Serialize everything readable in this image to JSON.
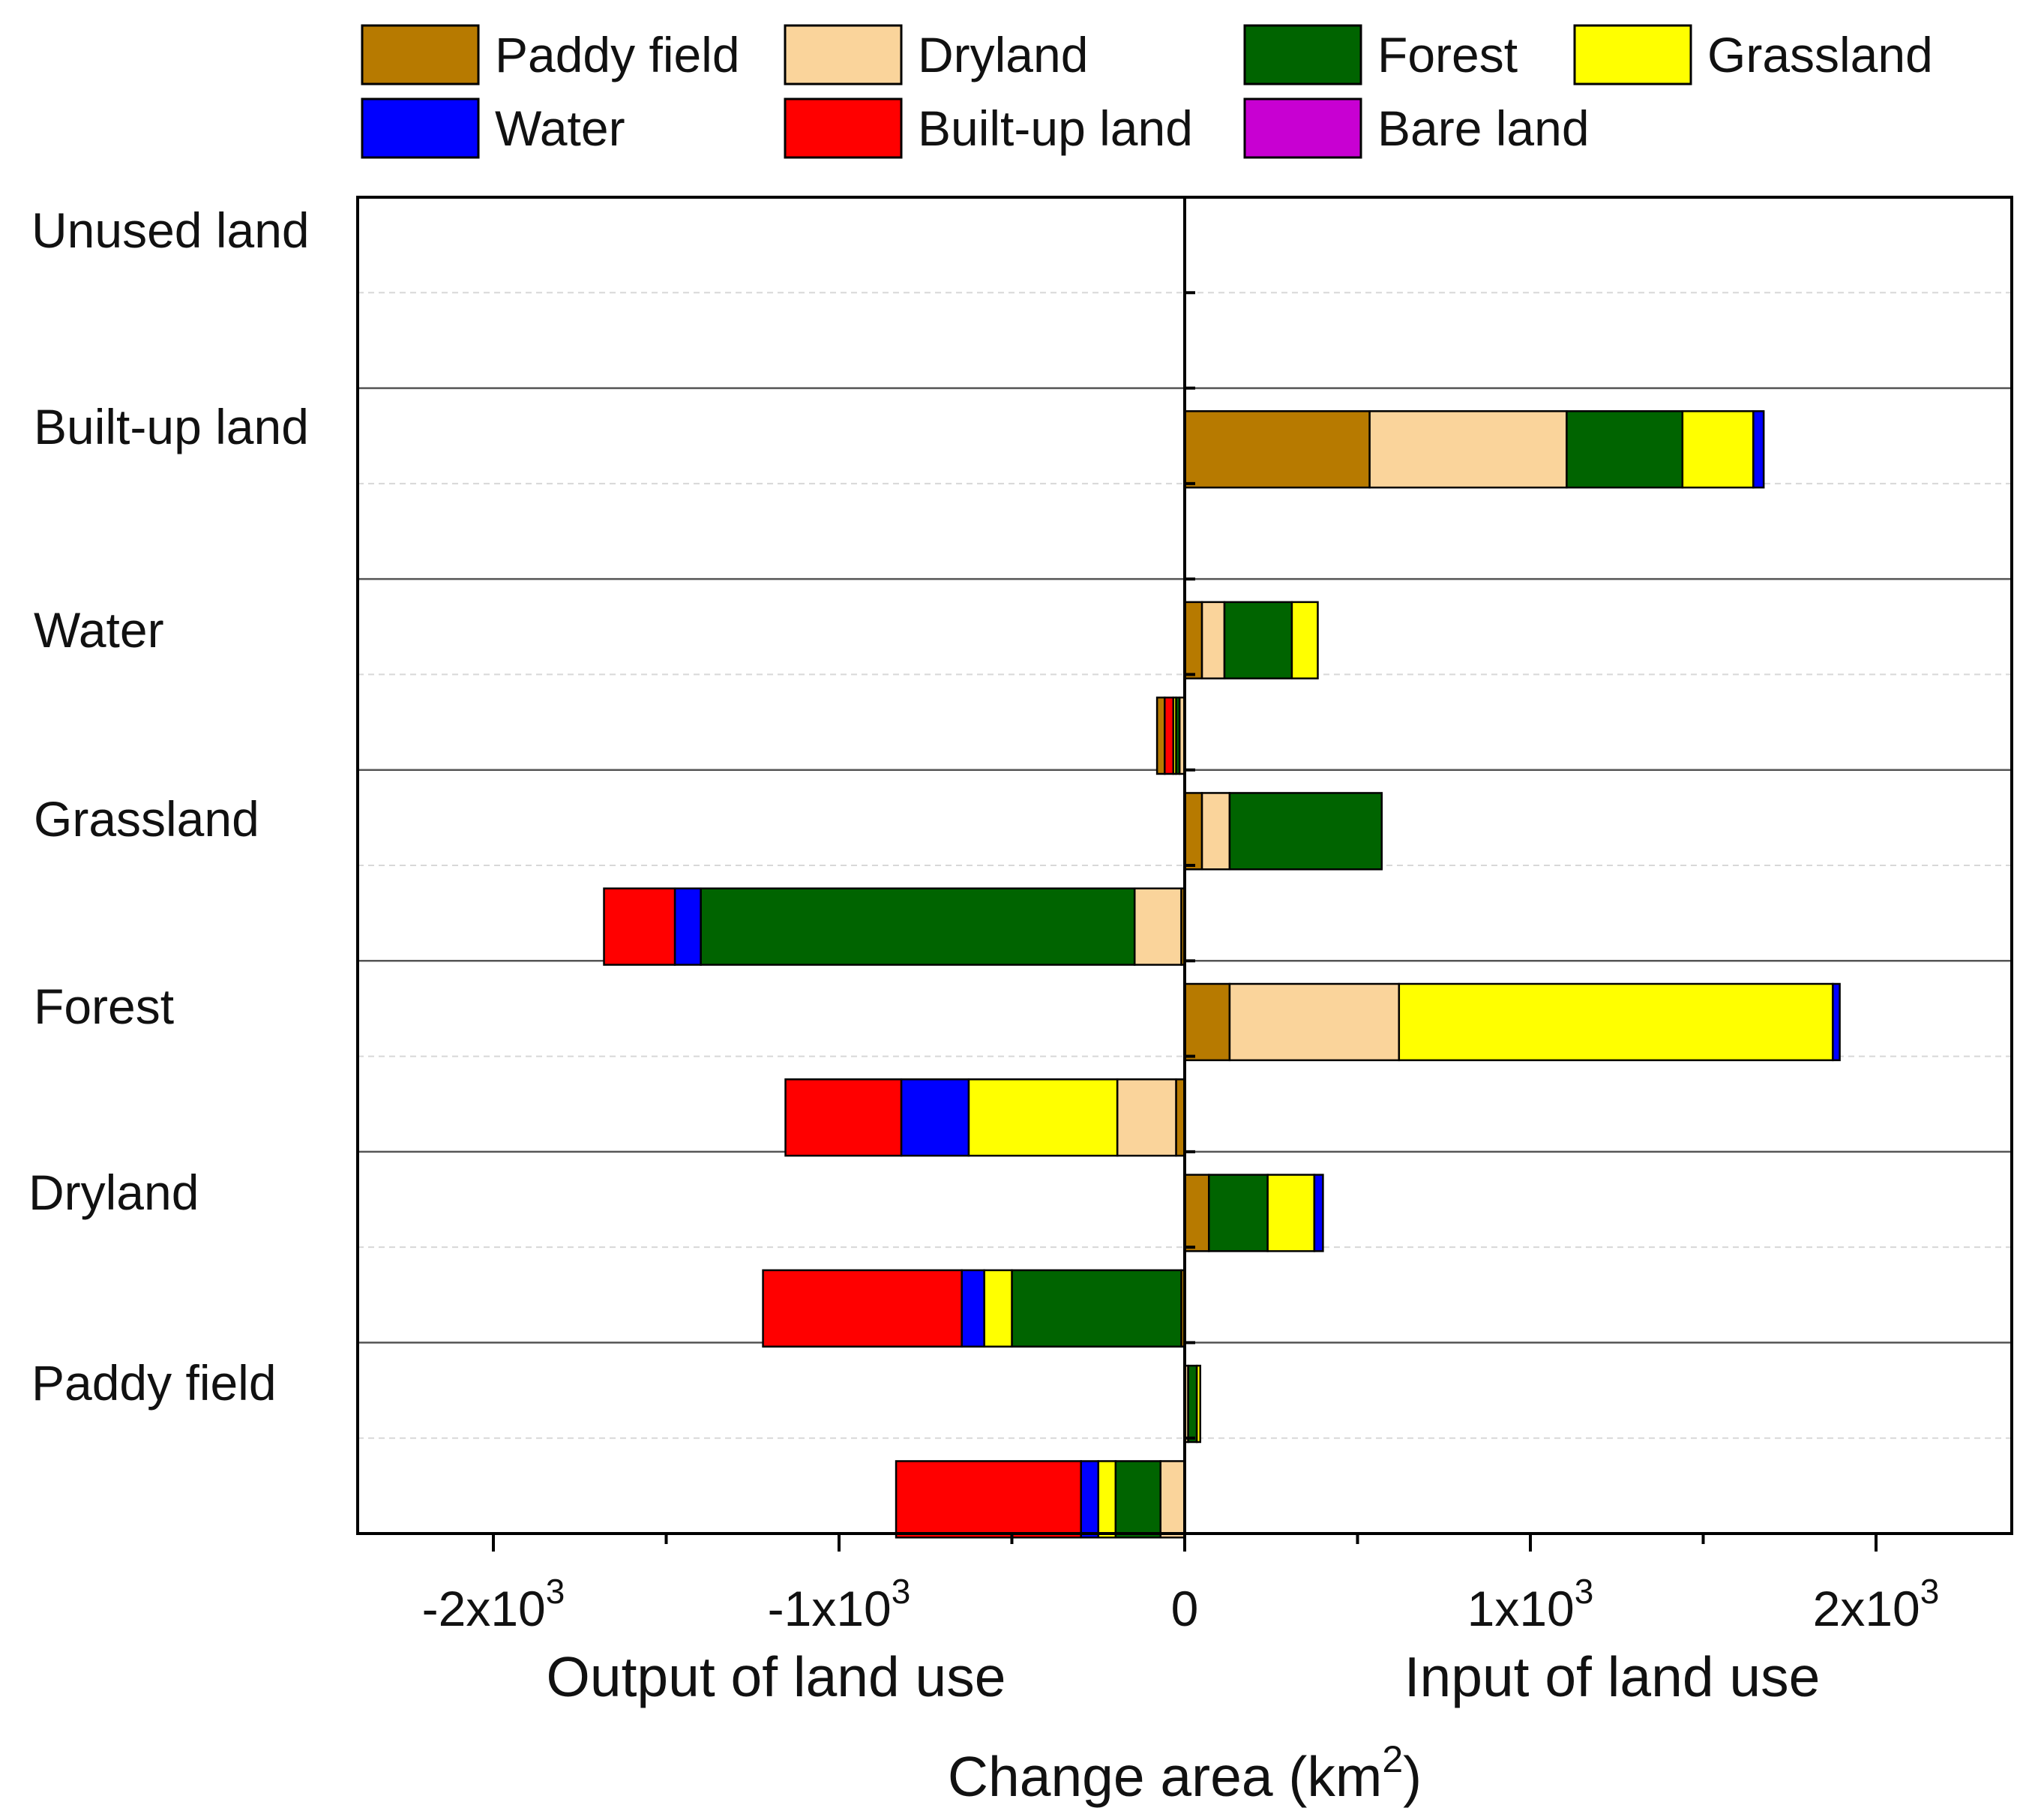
{
  "chart_data": {
    "type": "bar",
    "orientation": "horizontal",
    "stacked": true,
    "diverging": true,
    "xlabel": "Change area (km²)",
    "xlabel_text": "Change area (km",
    "xlabel_sup": "2",
    "xlabel_close": ")",
    "left_caption": "Output of land use",
    "right_caption": "Input of land use",
    "xlim": [
      -2400,
      2400
    ],
    "xticks": [
      {
        "value": -2000,
        "base": "-2x10",
        "exp": "3"
      },
      {
        "value": -1000,
        "base": "-1x10",
        "exp": "3"
      },
      {
        "value": 0,
        "base": "0",
        "exp": ""
      },
      {
        "value": 1000,
        "base": "1x10",
        "exp": "3"
      },
      {
        "value": 2000,
        "base": "2x10",
        "exp": "3"
      }
    ],
    "categories": [
      "Unused land",
      "Built-up land",
      "Water",
      "Grassland",
      "Forest",
      "Dryland",
      "Paddy field"
    ],
    "legend_position": "top",
    "series": [
      {
        "name": "Paddy field",
        "color": "#B77A00"
      },
      {
        "name": "Dryland",
        "color": "#FAD49B"
      },
      {
        "name": "Forest",
        "color": "#006400"
      },
      {
        "name": "Grassland",
        "color": "#FFFF00"
      },
      {
        "name": "Water",
        "color": "#0000FF"
      },
      {
        "name": "Built-up land",
        "color": "#FF0000"
      },
      {
        "name": "Bare land",
        "color": "#C800D2"
      }
    ],
    "legend_order": [
      "Paddy field",
      "Dryland",
      "Forest",
      "Grassland",
      "Water",
      "Built-up land",
      "Bare land"
    ],
    "bars": [
      {
        "category": "Unused land",
        "side": "input",
        "segments": []
      },
      {
        "category": "Unused land",
        "side": "output",
        "segments": []
      },
      {
        "category": "Built-up land",
        "side": "input",
        "segments": [
          {
            "series": "Paddy field",
            "value": 535
          },
          {
            "series": "Dryland",
            "value": 570
          },
          {
            "series": "Forest",
            "value": 335
          },
          {
            "series": "Grassland",
            "value": 205
          },
          {
            "series": "Water",
            "value": 30
          }
        ]
      },
      {
        "category": "Built-up land",
        "side": "output",
        "segments": []
      },
      {
        "category": "Water",
        "side": "input",
        "segments": [
          {
            "series": "Paddy field",
            "value": 50
          },
          {
            "series": "Dryland",
            "value": 65
          },
          {
            "series": "Forest",
            "value": 195
          },
          {
            "series": "Grassland",
            "value": 75
          }
        ]
      },
      {
        "category": "Water",
        "side": "output",
        "segments": [
          {
            "series": "Dryland",
            "value": -15
          },
          {
            "series": "Forest",
            "value": -10
          },
          {
            "series": "Grassland",
            "value": -8
          },
          {
            "series": "Built-up land",
            "value": -25
          },
          {
            "series": "Paddy field",
            "value": -22
          }
        ]
      },
      {
        "category": "Grassland",
        "side": "input",
        "segments": [
          {
            "series": "Paddy field",
            "value": 50
          },
          {
            "series": "Dryland",
            "value": 80
          },
          {
            "series": "Forest",
            "value": 440
          }
        ]
      },
      {
        "category": "Grassland",
        "side": "output",
        "segments": [
          {
            "series": "Paddy field",
            "value": -10
          },
          {
            "series": "Dryland",
            "value": -135
          },
          {
            "series": "Forest",
            "value": -1255
          },
          {
            "series": "Water",
            "value": -75
          },
          {
            "series": "Built-up land",
            "value": -205
          }
        ]
      },
      {
        "category": "Forest",
        "side": "input",
        "segments": [
          {
            "series": "Paddy field",
            "value": 130
          },
          {
            "series": "Dryland",
            "value": 490
          },
          {
            "series": "Grassland",
            "value": 1255
          },
          {
            "series": "Water",
            "value": 20
          }
        ]
      },
      {
        "category": "Forest",
        "side": "output",
        "segments": [
          {
            "series": "Paddy field",
            "value": -25
          },
          {
            "series": "Dryland",
            "value": -170
          },
          {
            "series": "Grassland",
            "value": -430
          },
          {
            "series": "Water",
            "value": -195
          },
          {
            "series": "Built-up land",
            "value": -335
          }
        ]
      },
      {
        "category": "Dryland",
        "side": "input",
        "segments": [
          {
            "series": "Paddy field",
            "value": 70
          },
          {
            "series": "Forest",
            "value": 170
          },
          {
            "series": "Grassland",
            "value": 135
          },
          {
            "series": "Water",
            "value": 25
          }
        ]
      },
      {
        "category": "Dryland",
        "side": "output",
        "segments": [
          {
            "series": "Paddy field",
            "value": -10
          },
          {
            "series": "Forest",
            "value": -490
          },
          {
            "series": "Grassland",
            "value": -80
          },
          {
            "series": "Water",
            "value": -65
          },
          {
            "series": "Built-up land",
            "value": -575
          }
        ]
      },
      {
        "category": "Paddy field",
        "side": "input",
        "segments": [
          {
            "series": "Dryland",
            "value": 10
          },
          {
            "series": "Forest",
            "value": 25
          },
          {
            "series": "Grassland",
            "value": 10
          }
        ]
      },
      {
        "category": "Paddy field",
        "side": "output",
        "segments": [
          {
            "series": "Dryland",
            "value": -70
          },
          {
            "series": "Forest",
            "value": -130
          },
          {
            "series": "Grassland",
            "value": -50
          },
          {
            "series": "Water",
            "value": -50
          },
          {
            "series": "Built-up land",
            "value": -535
          }
        ]
      }
    ]
  }
}
